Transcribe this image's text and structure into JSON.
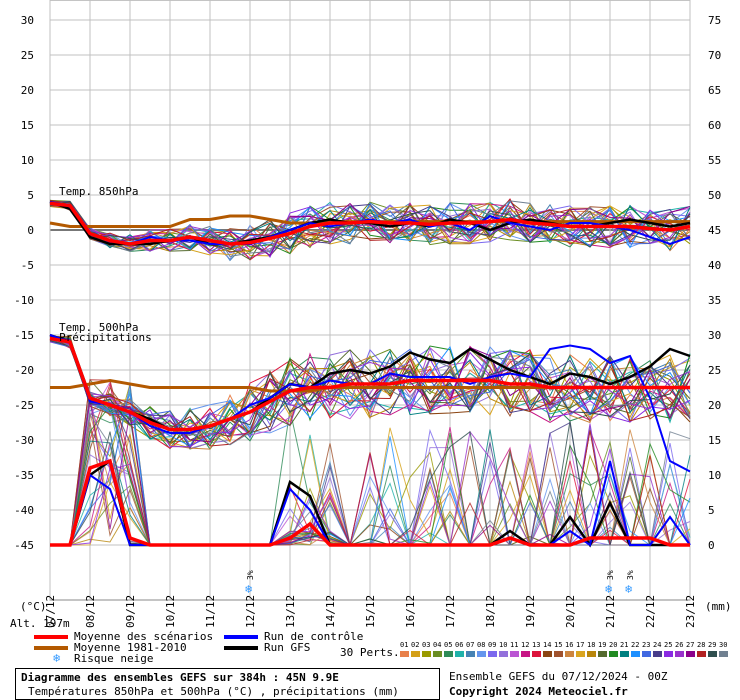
{
  "chart_data": {
    "type": "line",
    "title": "Diagramme des ensembles GEFS sur 384h : 45N 9.9E",
    "subtitle": "Températures 850hPa et 500hPa (°C) , précipitations (mm)",
    "left_axis": {
      "unit": "(°C)",
      "ticks": [
        30,
        25,
        20,
        15,
        10,
        5,
        0,
        -5,
        -10,
        -15,
        -20,
        -25,
        -30,
        -35,
        -40,
        -45
      ],
      "range": [
        -45,
        30
      ]
    },
    "right_axis": {
      "unit": "(mm)",
      "ticks": [
        75,
        70,
        65,
        60,
        55,
        50,
        45,
        40,
        35,
        30,
        25,
        20,
        15,
        10,
        5,
        0
      ],
      "range": [
        0,
        75
      ]
    },
    "x_labels": [
      "07/12",
      "08/12",
      "09/12",
      "10/12",
      "11/12",
      "12/12",
      "13/12",
      "14/12",
      "15/12",
      "16/12",
      "17/12",
      "18/12",
      "19/12",
      "20/12",
      "21/12",
      "22/12",
      "23/12"
    ],
    "panel_labels": {
      "t850": "Temp. 850hPa",
      "t500": "Temp. 500hPa",
      "precip": "Précipitations"
    },
    "altitude": "Alt. 197m",
    "snow_risk_marks": [
      {
        "day": 5,
        "label": "3%"
      },
      {
        "day": 14,
        "label": "3%"
      },
      {
        "day": 14.5,
        "label": "3%"
      }
    ],
    "series": [
      {
        "name": "Moyenne des scénarios",
        "color": "#ff0000",
        "t850": [
          3.8,
          3.5,
          -0.5,
          -1.5,
          -2.0,
          -1.5,
          -1.5,
          -1.0,
          -1.5,
          -2.0,
          -1.8,
          -1.2,
          -0.5,
          0.5,
          1.0,
          1.0,
          1.2,
          1.0,
          1.0,
          0.8,
          1.0,
          1.0,
          1.2,
          1.5,
          1.0,
          0.8,
          0.5,
          0.5,
          0.5,
          0.5,
          0.2,
          0.0,
          0.5
        ],
        "t500": [
          -15.5,
          -16.0,
          -24.0,
          -25.0,
          -26.0,
          -27.5,
          -28.5,
          -28.5,
          -28.0,
          -27.0,
          -26.0,
          -24.5,
          -23.0,
          -22.5,
          -22.5,
          -22.0,
          -22.0,
          -22.0,
          -21.5,
          -21.5,
          -21.5,
          -21.5,
          -21.5,
          -22.0,
          -22.0,
          -22.5,
          -22.5,
          -22.5,
          -22.5,
          -22.5,
          -22.5,
          -22.5,
          -22.5
        ],
        "precip": [
          0,
          0,
          11,
          12,
          1,
          0,
          0,
          0,
          0,
          0,
          0,
          0,
          1,
          3,
          0,
          0,
          0,
          0,
          0,
          0,
          0,
          0,
          0,
          1,
          0,
          0,
          0,
          1,
          1,
          1,
          1,
          0,
          0
        ]
      },
      {
        "name": "Moyenne 1981-2010",
        "color": "#b35900",
        "t850": [
          1.0,
          0.5,
          0.5,
          0.5,
          0.5,
          0.5,
          0.5,
          1.5,
          1.5,
          2.0,
          2.0,
          1.5,
          1.0,
          1.0,
          1.2,
          1.2,
          1.2,
          1.2,
          1.2,
          1.2,
          1.2,
          1.2,
          1.2,
          1.2,
          1.2,
          1.2,
          1.2,
          1.2,
          1.2,
          1.2,
          1.2,
          1.2,
          1.2
        ],
        "t500": [
          -22.5,
          -22.5,
          -22.0,
          -21.5,
          -22.0,
          -22.5,
          -22.5,
          -22.5,
          -22.5,
          -22.5,
          -22.5,
          -23.0,
          -23.0,
          -23.0,
          -22.5,
          -22.5,
          -22.5,
          -22.5,
          -22.5,
          -22.5,
          -22.5,
          -22.5,
          -22.5,
          -22.5,
          -22.5,
          -22.5,
          -22.5,
          -22.5,
          -22.5,
          -22.5,
          -22.5,
          -22.5,
          -22.5
        ]
      },
      {
        "name": "Run de contrôle",
        "color": "#0000ff",
        "t850": [
          4.0,
          3.5,
          -0.5,
          -1.5,
          -2.0,
          -1.0,
          -1.5,
          -1.5,
          -2.0,
          -2.0,
          -2.0,
          -1.0,
          0.0,
          1.0,
          0.5,
          1.0,
          1.5,
          1.0,
          1.5,
          0.5,
          1.0,
          0.0,
          2.0,
          1.0,
          0.5,
          0.0,
          1.0,
          1.0,
          0.5,
          0.0,
          -1.0,
          -2.0,
          -1.0
        ],
        "t500": [
          -15.0,
          -16.0,
          -24.5,
          -25.0,
          -26.0,
          -28.0,
          -29.0,
          -29.0,
          -28.0,
          -27.0,
          -25.0,
          -24.0,
          -22.0,
          -22.5,
          -21.5,
          -22.0,
          -22.0,
          -20.5,
          -21.0,
          -21.0,
          -21.0,
          -22.0,
          -21.0,
          -20.5,
          -21.0,
          -17.0,
          -16.5,
          -17.0,
          -19.0,
          -18.0,
          -24.0,
          -33.0,
          -34.5
        ],
        "precip": [
          0,
          0,
          10,
          8,
          0,
          0,
          0,
          0,
          0,
          0,
          0,
          0,
          8,
          5,
          0,
          0,
          0,
          0,
          0,
          0,
          0,
          0,
          0,
          1,
          0,
          0,
          2,
          0,
          12,
          0,
          0,
          4,
          0
        ]
      },
      {
        "name": "Run GFS",
        "color": "#000000",
        "t850": [
          4.0,
          3.0,
          -1.0,
          -2.0,
          -2.0,
          -2.0,
          -1.5,
          -1.0,
          -2.0,
          -2.0,
          -1.5,
          -1.0,
          0.0,
          1.0,
          1.5,
          1.0,
          1.0,
          0.5,
          1.0,
          0.5,
          1.5,
          1.0,
          0.0,
          1.0,
          1.5,
          1.0,
          0.5,
          0.5,
          1.0,
          1.5,
          1.0,
          0.5,
          1.0
        ],
        "t500": [
          -15.0,
          -16.0,
          -24.0,
          -25.0,
          -26.0,
          -27.0,
          -28.5,
          -28.5,
          -28.0,
          -27.0,
          -26.0,
          -24.0,
          -22.0,
          -22.5,
          -20.5,
          -20.0,
          -20.5,
          -19.5,
          -17.5,
          -18.5,
          -19.0,
          -17.0,
          -18.5,
          -20.0,
          -21.0,
          -22.0,
          -20.5,
          -21.0,
          -22.0,
          -21.0,
          -19.5,
          -17.0,
          -18.0
        ],
        "precip": [
          0,
          0,
          10,
          12,
          0,
          0,
          0,
          0,
          0,
          0,
          0,
          0,
          9,
          7,
          0,
          0,
          0,
          0,
          0,
          0,
          0,
          0,
          0,
          2,
          0,
          0,
          4,
          0,
          6,
          0,
          0,
          0,
          0
        ]
      }
    ]
  },
  "legend": {
    "mean": "Moyenne des scénarios",
    "clim": "Moyenne 1981-2010",
    "control": "Run de contrôle",
    "gfs": "Run GFS",
    "snow": "Risque neige",
    "perts_label": "30 Perts.",
    "perts_numbers": [
      "01",
      "02",
      "03",
      "04",
      "05",
      "06",
      "07",
      "08",
      "09",
      "10",
      "11",
      "12",
      "13",
      "14",
      "15",
      "16",
      "17",
      "18",
      "19",
      "20",
      "21",
      "22",
      "23",
      "24",
      "25",
      "26",
      "27",
      "28",
      "29",
      "30"
    ],
    "perts_colors": [
      "#e8804a",
      "#d4a017",
      "#9a9a00",
      "#6b8e23",
      "#2e8b57",
      "#20b2aa",
      "#4682b4",
      "#6495ed",
      "#7b68ee",
      "#9370db",
      "#ba55d3",
      "#c71585",
      "#dc143c",
      "#8b4513",
      "#a0522d",
      "#cd853f",
      "#daa520",
      "#b8860b",
      "#556b2f",
      "#228b22",
      "#008080",
      "#1e90ff",
      "#4169e1",
      "#483d8b",
      "#8a2be2",
      "#9932cc",
      "#8b008b",
      "#b22222",
      "#2f4f4f",
      "#708090"
    ]
  },
  "footer": {
    "ensemble": "Ensemble GEFS du 07/12/2024 - 00Z",
    "copyright": "Copyright 2024 Meteociel.fr"
  }
}
